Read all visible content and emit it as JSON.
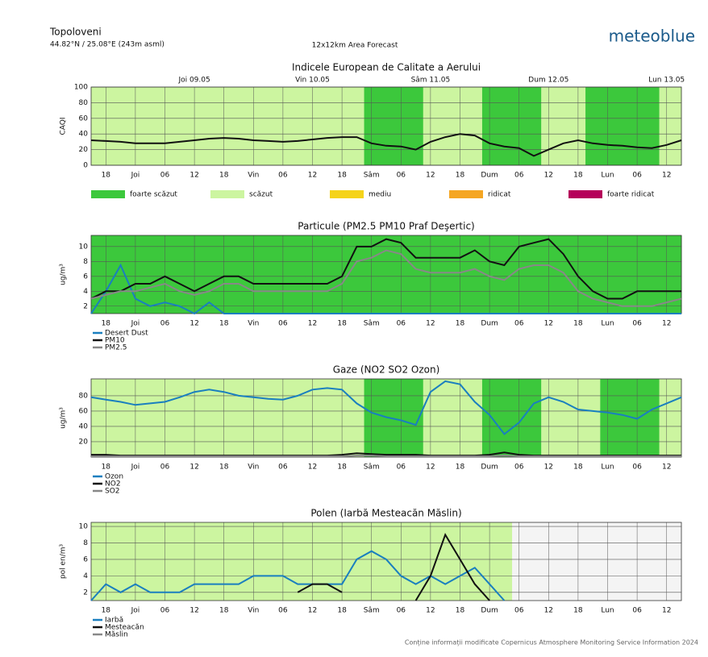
{
  "header": {
    "location": "Topoloveni",
    "coords": "44.82°N / 25.08°E (243m asml)",
    "forecast": "12x12km Area Forecast",
    "brand": "meteoblue"
  },
  "footer": "Conține informații modificate Copernicus Atmosphere Monitoring Service Information 2024",
  "chart_data": [
    {
      "type": "line",
      "title": "Indicele European de Calitate a Aerului",
      "y_label": "CAQI",
      "day_labels": [
        "Joi 09.05",
        "Vin 10.05",
        "Sâm 11.05",
        "Dum 12.05",
        "Lun 13.05"
      ],
      "categories": [
        null,
        "18",
        null,
        "Joi",
        null,
        "06",
        null,
        "12",
        null,
        "18",
        null,
        "Vin",
        null,
        "06",
        null,
        "12",
        null,
        "18",
        null,
        "Sâm",
        null,
        "06",
        null,
        "12",
        null,
        "18",
        null,
        "Dum",
        null,
        "06",
        null,
        "12",
        null,
        "18",
        null,
        "Lun",
        null,
        "06",
        null,
        "12",
        null
      ],
      "ylim": [
        0,
        100
      ],
      "yticks": [
        0,
        20,
        40,
        60,
        80,
        100
      ],
      "grid": true,
      "levels": [
        {
          "name": "foarte scăzut",
          "color": "#3cc83c"
        },
        {
          "name": "scăzut",
          "color": "#ccf5a0"
        },
        {
          "name": "mediu",
          "color": "#f5d31a"
        },
        {
          "name": "ridicat",
          "color": "#f5a623"
        },
        {
          "name": "foarte ridicat",
          "color": "#b5005a"
        }
      ],
      "band_levels": [
        1,
        1,
        1,
        1,
        1,
        1,
        1,
        1,
        1,
        1,
        1,
        1,
        1,
        1,
        1,
        1,
        1,
        1,
        1,
        0,
        0,
        0,
        0,
        1,
        1,
        1,
        1,
        0,
        0,
        0,
        0,
        1,
        1,
        1,
        0,
        0,
        0,
        0,
        0,
        1,
        1
      ],
      "series": [
        {
          "name": "CAQI",
          "color": "#111111",
          "values": [
            32,
            31,
            30,
            28,
            28,
            28,
            30,
            32,
            34,
            35,
            34,
            32,
            31,
            30,
            31,
            33,
            35,
            36,
            36,
            28,
            25,
            24,
            20,
            30,
            36,
            40,
            38,
            28,
            24,
            22,
            12,
            20,
            28,
            32,
            28,
            26,
            25,
            23,
            22,
            26,
            32
          ]
        }
      ]
    },
    {
      "type": "line",
      "title": "Particule (PM2.5 PM10 Praf Deşertic)",
      "y_label": "ug/m³",
      "categories": [
        null,
        "18",
        null,
        "Joi",
        null,
        "06",
        null,
        "12",
        null,
        "18",
        null,
        "Vin",
        null,
        "06",
        null,
        "12",
        null,
        "18",
        null,
        "Sâm",
        null,
        "06",
        null,
        "12",
        null,
        "18",
        null,
        "Dum",
        null,
        "06",
        null,
        "12",
        null,
        "18",
        null,
        "Lun",
        null,
        "06",
        null,
        "12",
        null
      ],
      "ylim": [
        1,
        11.5
      ],
      "yticks": [
        2,
        4,
        6,
        8,
        10
      ],
      "grid": true,
      "band_levels": [
        0,
        0,
        0,
        0,
        0,
        0,
        0,
        0,
        0,
        0,
        0,
        0,
        0,
        0,
        0,
        0,
        0,
        0,
        0,
        0,
        0,
        0,
        0,
        0,
        0,
        0,
        0,
        0,
        0,
        0,
        0,
        0,
        0,
        0,
        0,
        0,
        0,
        0,
        0,
        0,
        0
      ],
      "series": [
        {
          "name": "Desert Dust",
          "color": "#1a7fbf",
          "values": [
            1,
            4,
            7.5,
            3,
            2,
            2.5,
            2,
            1,
            2.5,
            1,
            1,
            1,
            1,
            1,
            1,
            1,
            1,
            1,
            1,
            1,
            1,
            1,
            1,
            1,
            1,
            1,
            1,
            1,
            1,
            1,
            1,
            1,
            1,
            1,
            1,
            1,
            1,
            1,
            1,
            1,
            1
          ]
        },
        {
          "name": "PM10",
          "color": "#111111",
          "values": [
            3,
            4,
            4,
            5,
            5,
            6,
            5,
            4,
            5,
            6,
            6,
            5,
            5,
            5,
            5,
            5,
            5,
            6,
            10,
            10,
            11,
            10.5,
            8.5,
            8.5,
            8.5,
            8.5,
            9.5,
            8,
            7.5,
            10,
            10.5,
            11,
            9,
            6,
            4,
            3,
            3,
            4,
            4,
            4,
            4
          ]
        },
        {
          "name": "PM2.5",
          "color": "#888888",
          "values": [
            3,
            3.5,
            4,
            4,
            4.5,
            5,
            4,
            3.5,
            4,
            5,
            5,
            4,
            4,
            4,
            4,
            4,
            4,
            5,
            8,
            8.5,
            9.5,
            9,
            7,
            6.5,
            6.5,
            6.5,
            7,
            6,
            5.5,
            7,
            7.5,
            7.5,
            6.5,
            4,
            3,
            2.5,
            2,
            2,
            2,
            2.5,
            3
          ]
        }
      ]
    },
    {
      "type": "line",
      "title": "Gaze (NO2 SO2 Ozon)",
      "y_label": "ug/m³",
      "categories": [
        null,
        "18",
        null,
        "Joi",
        null,
        "06",
        null,
        "12",
        null,
        "18",
        null,
        "Vin",
        null,
        "06",
        null,
        "12",
        null,
        "18",
        null,
        "Sâm",
        null,
        "06",
        null,
        "12",
        null,
        "18",
        null,
        "Dum",
        null,
        "06",
        null,
        "12",
        null,
        "18",
        null,
        "Lun",
        null,
        "06",
        null,
        "12",
        null
      ],
      "ylim": [
        0,
        102
      ],
      "yticks": [
        20,
        40,
        60,
        80
      ],
      "grid": true,
      "band_levels": [
        1,
        1,
        1,
        1,
        1,
        1,
        1,
        1,
        1,
        1,
        1,
        1,
        1,
        1,
        1,
        1,
        1,
        1,
        1,
        0,
        0,
        0,
        0,
        1,
        1,
        1,
        1,
        0,
        0,
        0,
        0,
        1,
        1,
        1,
        1,
        0,
        0,
        0,
        0,
        1,
        1
      ],
      "series": [
        {
          "name": "Ozon",
          "color": "#1a7fbf",
          "values": [
            78,
            75,
            72,
            68,
            70,
            72,
            78,
            85,
            88,
            85,
            80,
            78,
            76,
            75,
            80,
            88,
            90,
            88,
            70,
            58,
            52,
            48,
            42,
            85,
            99,
            95,
            72,
            55,
            30,
            45,
            70,
            78,
            72,
            62,
            60,
            58,
            55,
            50,
            62,
            70,
            78
          ]
        },
        {
          "name": "NO2",
          "color": "#111111",
          "values": [
            3,
            3,
            2,
            2,
            2,
            2,
            2,
            2,
            2,
            2,
            2,
            2,
            2,
            2,
            2,
            2,
            2,
            3,
            5,
            4,
            3,
            3,
            3,
            2,
            2,
            2,
            2,
            3,
            6,
            3,
            2,
            2,
            2,
            2,
            2,
            2,
            2,
            2,
            2,
            2,
            2
          ]
        },
        {
          "name": "SO2",
          "color": "#888888",
          "values": [
            1,
            1,
            1,
            1,
            1,
            1,
            1,
            1,
            1,
            1,
            1,
            1,
            1,
            1,
            1,
            1,
            1,
            1,
            2,
            2,
            1,
            1,
            1,
            1,
            1,
            1,
            1,
            1,
            2,
            1,
            1,
            1,
            1,
            1,
            1,
            1,
            1,
            1,
            1,
            1,
            1
          ]
        }
      ]
    },
    {
      "type": "line",
      "title": "Polen (Iarbă Mesteacăn Măslin)",
      "y_label": "pol en/m³",
      "categories": [
        null,
        "18",
        null,
        "Joi",
        null,
        "06",
        null,
        "12",
        null,
        "18",
        null,
        "Vin",
        null,
        "06",
        null,
        "12",
        null,
        "18",
        null,
        "Sâm",
        null,
        "06",
        null,
        "12",
        null,
        "18",
        null,
        "Dum",
        null,
        "06",
        null,
        "12",
        null,
        "18",
        null,
        "Lun",
        null,
        "06",
        null,
        "12",
        null
      ],
      "ylim": [
        1,
        10.5
      ],
      "yticks": [
        2,
        4,
        6,
        8,
        10
      ],
      "grid": true,
      "band_levels": [
        1,
        1,
        1,
        1,
        1,
        1,
        1,
        1,
        1,
        1,
        1,
        1,
        1,
        1,
        1,
        1,
        1,
        1,
        1,
        1,
        1,
        1,
        1,
        1,
        1,
        1,
        1,
        1,
        1,
        null,
        null,
        null,
        null,
        null,
        null,
        null,
        null,
        null,
        null,
        null,
        null
      ],
      "series": [
        {
          "name": "Iarbă",
          "color": "#1a7fbf",
          "values": [
            1,
            3,
            2,
            3,
            2,
            2,
            2,
            3,
            3,
            3,
            3,
            4,
            4,
            4,
            3,
            3,
            3,
            3,
            6,
            7,
            6,
            4,
            3,
            4,
            3,
            4,
            5,
            3,
            1,
            null,
            null,
            null,
            null,
            null,
            null,
            null,
            null,
            null,
            null,
            null,
            null
          ]
        },
        {
          "name": "Mesteacăn",
          "color": "#111111",
          "values": [
            null,
            null,
            null,
            null,
            null,
            null,
            null,
            null,
            null,
            null,
            null,
            null,
            null,
            null,
            2,
            3,
            3,
            2,
            null,
            null,
            null,
            null,
            1,
            4,
            9,
            6,
            3,
            1,
            null,
            null,
            null,
            null,
            null,
            null,
            null,
            null,
            null,
            null,
            null,
            null,
            null
          ]
        },
        {
          "name": "Măslin",
          "color": "#888888",
          "values": [
            null,
            null,
            null,
            null,
            null,
            null,
            null,
            null,
            null,
            null,
            null,
            null,
            null,
            null,
            null,
            null,
            null,
            null,
            null,
            null,
            null,
            null,
            null,
            null,
            null,
            null,
            null,
            null,
            null,
            null,
            null,
            null,
            null,
            null,
            null,
            null,
            null,
            null,
            null,
            null,
            null
          ]
        }
      ]
    }
  ]
}
